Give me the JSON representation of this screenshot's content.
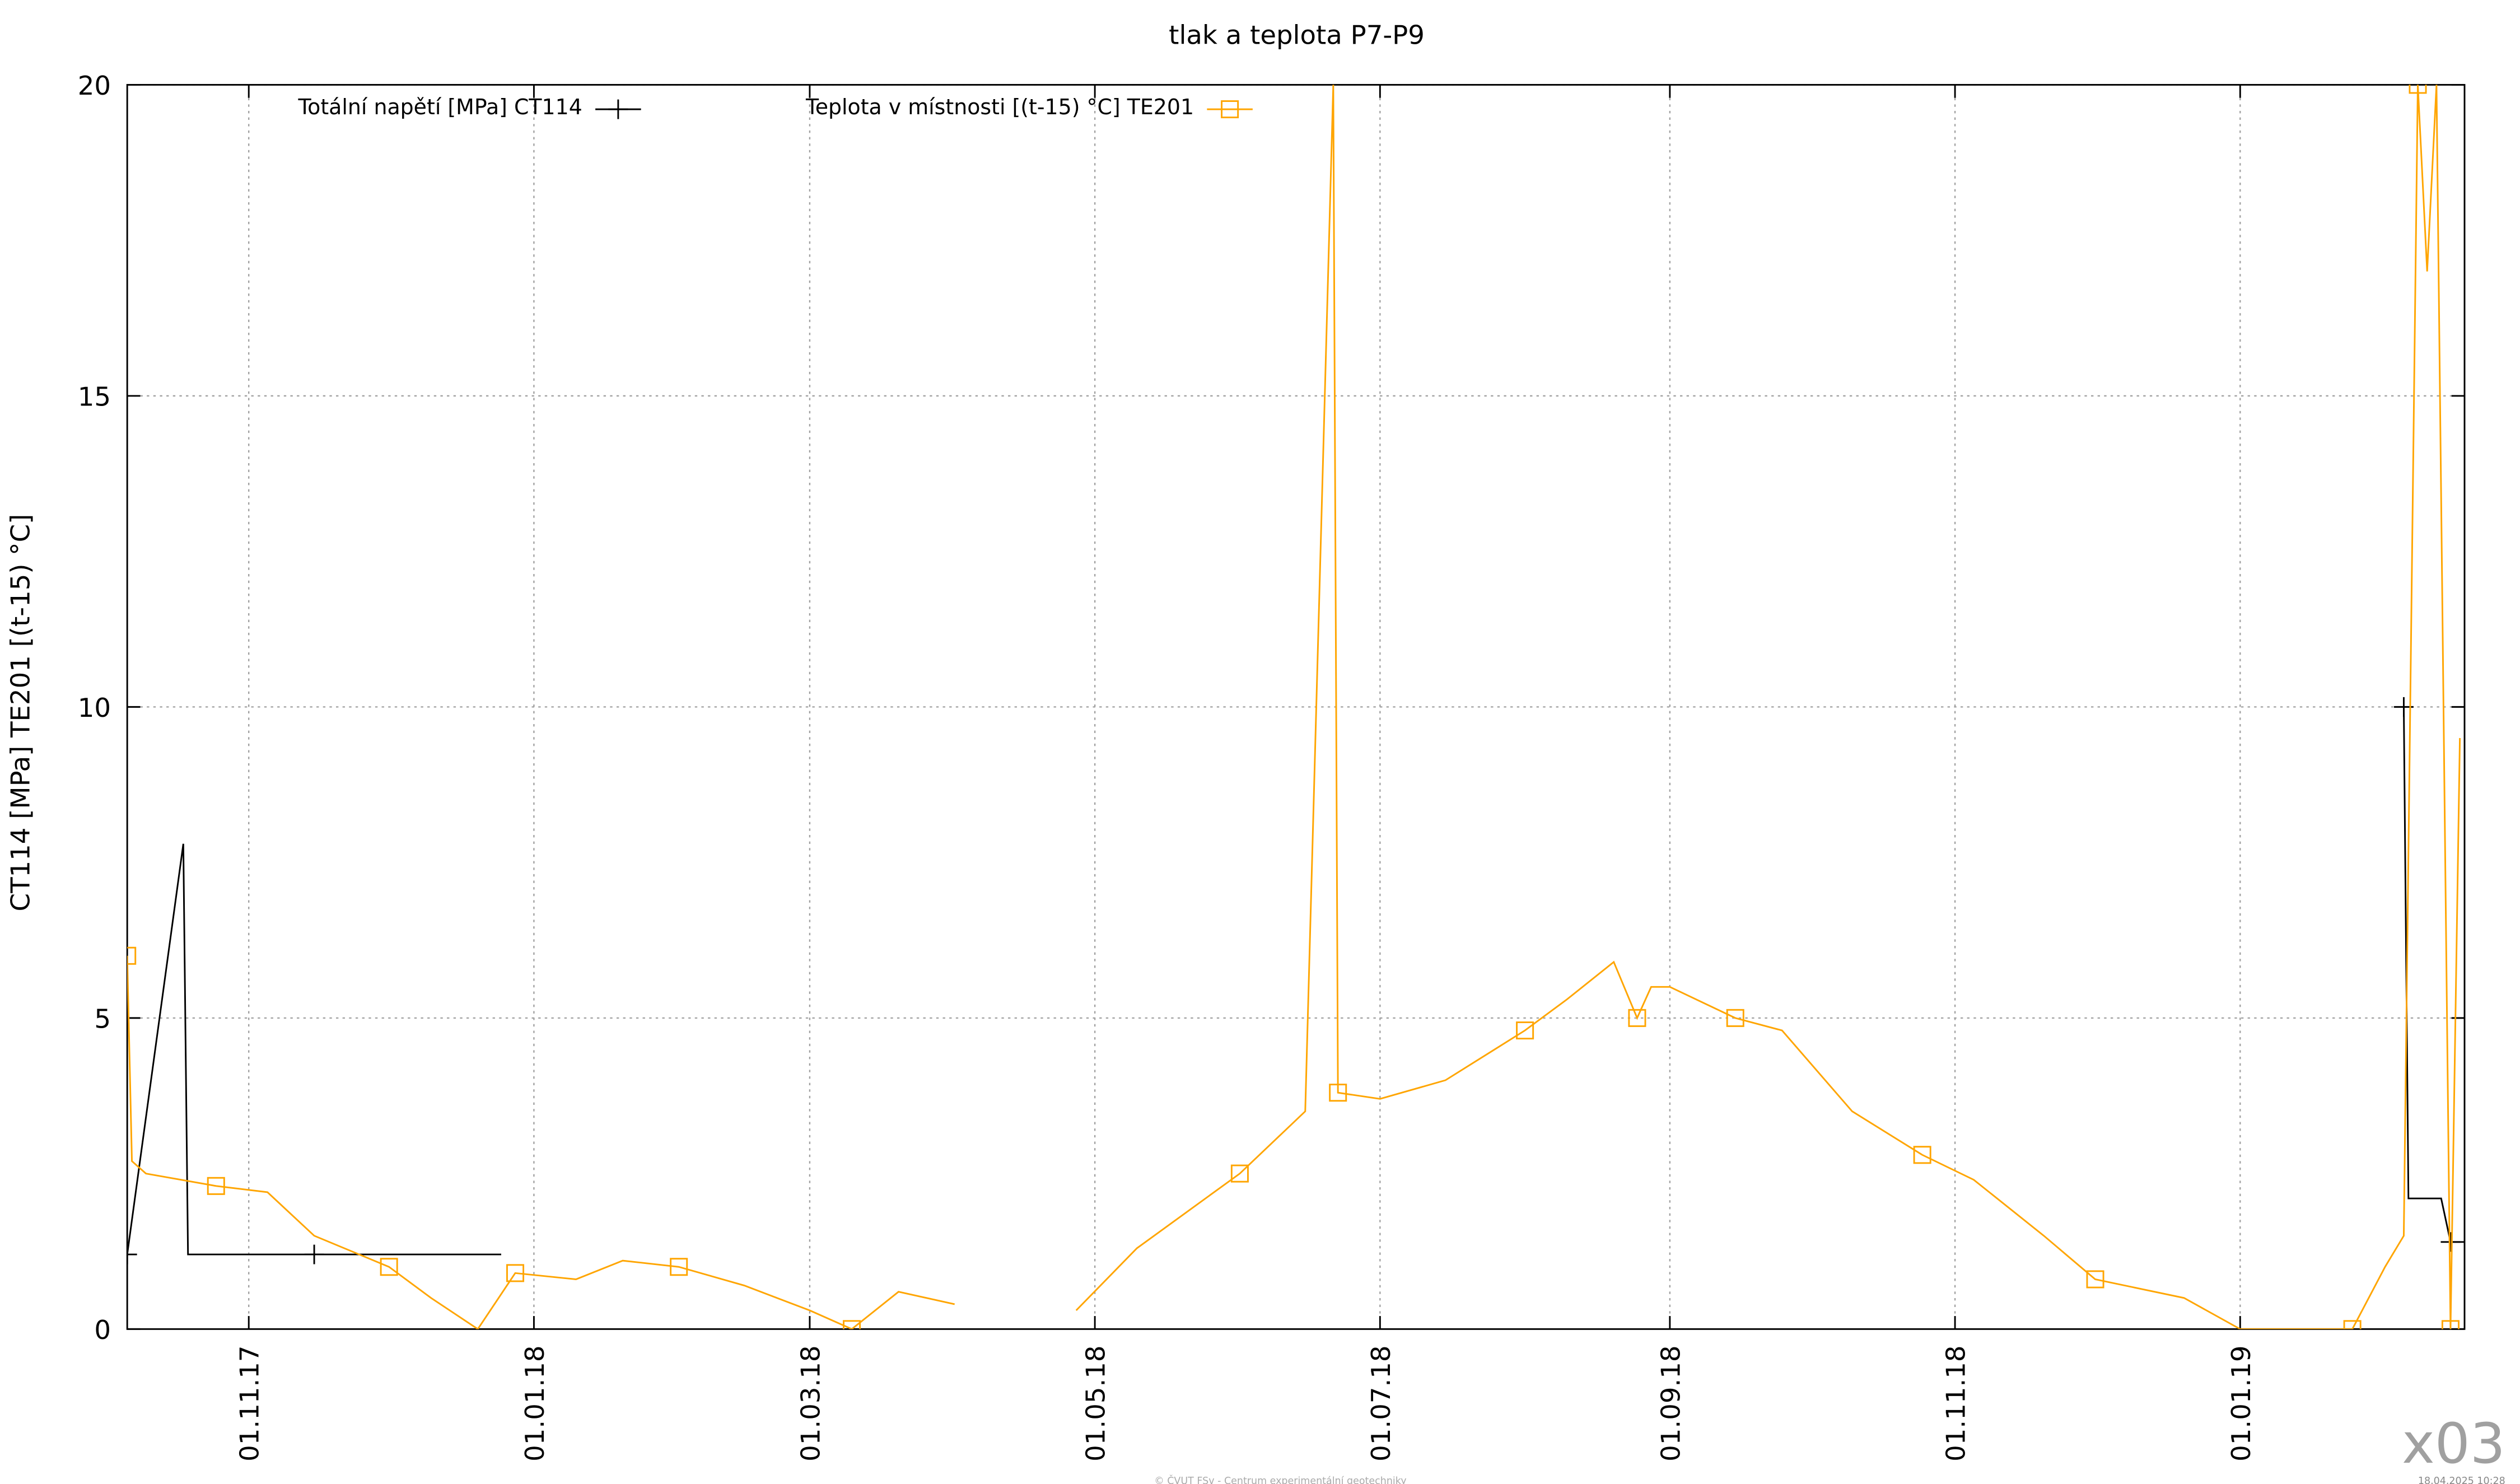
{
  "chart_data": {
    "type": "line",
    "title": "tlak a teplota P7-P9",
    "ylabel": "CT114 [MPa] TE201 [(t-15) °C]",
    "watermark": "x03",
    "footer": "© ČVUT FSv - Centrum experimentální geotechniky",
    "timestamp": "18.04.2025 10:28",
    "xlim": [
      "2017-10-06",
      "2019-02-18"
    ],
    "xticks": [
      {
        "value": "2017-11-01",
        "label": "01.11.17"
      },
      {
        "value": "2018-01-01",
        "label": "01.01.18"
      },
      {
        "value": "2018-03-01",
        "label": "01.03.18"
      },
      {
        "value": "2018-05-01",
        "label": "01.05.18"
      },
      {
        "value": "2018-07-01",
        "label": "01.07.18"
      },
      {
        "value": "2018-09-01",
        "label": "01.09.18"
      },
      {
        "value": "2018-11-01",
        "label": "01.11.18"
      },
      {
        "value": "2019-01-01",
        "label": "01.01.19"
      }
    ],
    "ylim": [
      0,
      20
    ],
    "yticks": [
      0,
      5,
      10,
      15,
      20
    ],
    "grid": true,
    "legend": "top",
    "series": [
      {
        "name": "Totální napětí [MPa] CT114",
        "color": "#000000",
        "marker": "plus",
        "x": [
          "2017-10-06",
          "2017-10-18",
          "2017-10-19",
          "2017-11-15",
          "2017-12-25",
          "2019-02-04",
          "2019-02-05",
          "2019-02-06",
          "2019-02-13",
          "2019-02-15",
          "2019-02-18"
        ],
        "values": [
          1.2,
          7.8,
          1.2,
          1.2,
          1.2,
          null,
          10,
          2.1,
          2.1,
          1.4,
          1.4
        ]
      },
      {
        "name": "Teplota v místnosti [(t-15) °C] TE201",
        "color": "#ffa500",
        "marker": "square",
        "x": [
          "2017-10-06",
          "2017-10-07",
          "2017-10-10",
          "2017-10-25",
          "2017-11-05",
          "2017-11-15",
          "2017-12-01",
          "2017-12-10",
          "2017-12-20",
          "2017-12-28",
          "2018-01-10",
          "2018-01-20",
          "2018-02-01",
          "2018-02-15",
          "2018-03-01",
          "2018-03-10",
          "2018-03-20",
          "2018-04-01",
          "2018-04-05",
          "2018-04-27",
          "2018-05-10",
          "2018-06-01",
          "2018-06-15",
          "2018-06-21",
          "2018-06-22",
          "2018-07-01",
          "2018-07-15",
          "2018-08-01",
          "2018-08-10",
          "2018-08-20",
          "2018-08-25",
          "2018-08-28",
          "2018-09-01",
          "2018-09-15",
          "2018-09-25",
          "2018-10-10",
          "2018-10-25",
          "2018-11-05",
          "2018-11-20",
          "2018-12-01",
          "2018-12-20",
          "2019-01-01",
          "2019-01-25",
          "2019-02-01",
          "2019-02-05",
          "2019-02-08",
          "2019-02-10",
          "2019-02-12",
          "2019-02-15",
          "2019-02-17"
        ],
        "values": [
          6,
          2.7,
          2.5,
          2.3,
          2.2,
          1.5,
          1.0,
          0.5,
          0.0,
          0.9,
          0.8,
          1.1,
          1.0,
          0.7,
          0.3,
          0.0,
          0.6,
          0.4,
          null,
          0.3,
          1.3,
          2.5,
          3.5,
          20,
          3.8,
          3.7,
          4.0,
          4.8,
          5.3,
          5.9,
          5.0,
          5.5,
          5.5,
          5.0,
          4.8,
          3.5,
          2.8,
          2.4,
          1.5,
          0.8,
          0.5,
          0.0,
          0.0,
          1.0,
          1.5,
          20,
          17,
          20,
          0.0,
          9.5
        ]
      }
    ]
  }
}
